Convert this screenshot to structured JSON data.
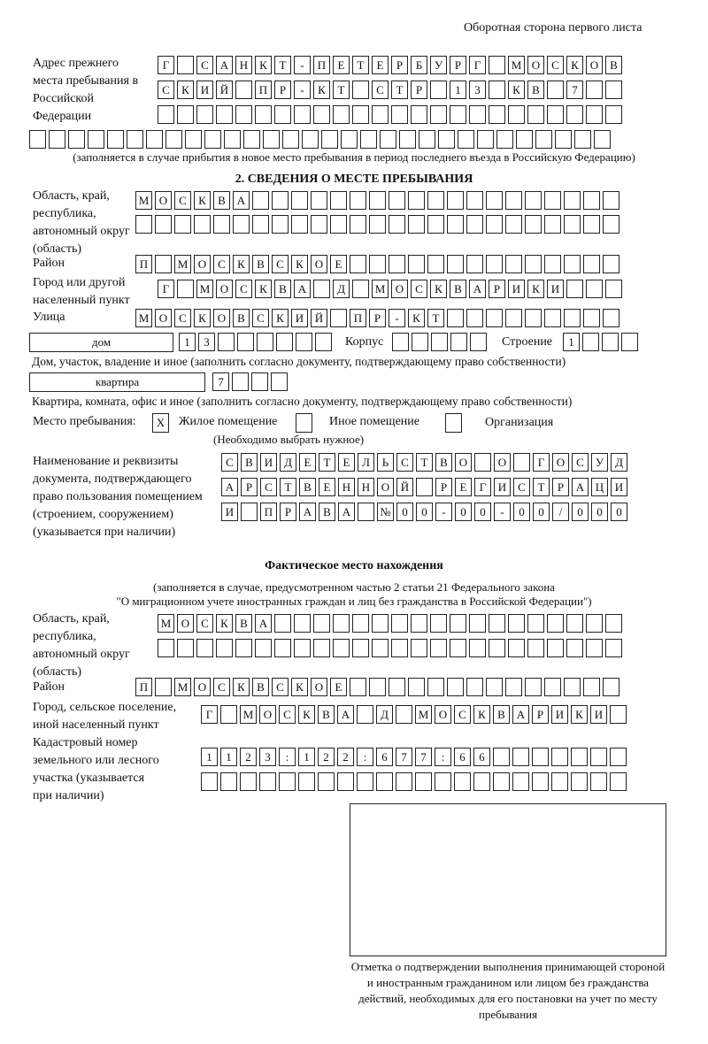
{
  "header": {
    "title": "Оборотная сторона первого листа"
  },
  "prev_address": {
    "label": "Адрес прежнего места пребывания в Российской Федерации",
    "rows": [
      "Г САНКТ-ПЕТЕРБУРГ МОСКОВ",
      "СКИЙ ПР-КТ СТР 13 КВ 7  ",
      "                        ",
      "                              "
    ],
    "note": "(заполняется в случае прибытия в новое место пребывания в период последнего въезда в Российскую Федерацию)"
  },
  "section2": {
    "title": "2. СВЕДЕНИЯ О МЕСТЕ ПРЕБЫВАНИЯ",
    "region_label": "Область, край, республика, автономный округ (область)",
    "region_rows": [
      "МОСКВА                   ",
      "                         "
    ],
    "district_label": "Район",
    "district_row": "П МОСКВСКОЕ              ",
    "city_label": "Город или другой населенный пункт",
    "city_row": "Г МОСКВА Д МОСКВАРИКИ   ",
    "street_label": "Улица",
    "street_row": "МОСКОВСКИЙ ПР-КТ         ",
    "house_type": "дом",
    "house_cells": "13      ",
    "korpus_label": "Корпус",
    "korpus_cells": "     ",
    "building_label": "Строение",
    "building_cells": "1   ",
    "house_note": "Дом, участок, владение и иное (заполнить согласно документу, подтверждающему право собственности)",
    "apt_type": "квартира",
    "apt_cells": "7   ",
    "apt_note": "Квартира, комната, офис и иное (заполнить согласно документу, подтверждающему право собственности)",
    "stay_label": "Место пребывания:",
    "stay_options": [
      {
        "label": "Жилое помещение",
        "mark": "X",
        "checked": true
      },
      {
        "label": "Иное помещение",
        "mark": "",
        "checked": false
      },
      {
        "label": "Организация",
        "mark": "",
        "checked": false
      }
    ],
    "stay_note": "(Необходимо выбрать нужное)",
    "doc_label": "Наименование и реквизиты документа, подтверждающего право пользования помещением (строением, сооружением) (указывается при наличии)",
    "doc_rows": [
      "СВИДЕТЕЛЬСТВО О ГОСУД",
      "АРСТВЕННОЙ РЕГИСТРАЦИ",
      "И ПРАВА №00-00-00/000"
    ]
  },
  "actual": {
    "title": "Фактическое место нахождения",
    "note1": "(заполняется в случае, предусмотренном частью 2 статьи 21 Федерального закона",
    "note2": "\"О миграционном учете иностранных граждан и лиц без гражданства в Российской Федерации\")",
    "region_label": "Область, край, республика, автономный округ (область)",
    "region_rows": [
      "МОСКВА                  ",
      "                        "
    ],
    "district_label": "Район",
    "district_row": "П МОСКВСКОЕ              ",
    "city_label": "Город, сельское поселение, иной населенный пункт",
    "city_row": "Г МОСКВА Д МОСКВАРИКИ ",
    "cadastre_label": "Кадастровый номер земельного или лесного участка (указывается при наличии)",
    "cadastre_rows": [
      "1123:122:677:66       ",
      "                      "
    ]
  },
  "stamp": {
    "caption": "Отметка о подтверждении выполнения принимающей стороной и иностранным гражданином или лицом без гражданства действий, необходимых для его постановки на учет по месту пребывания"
  }
}
